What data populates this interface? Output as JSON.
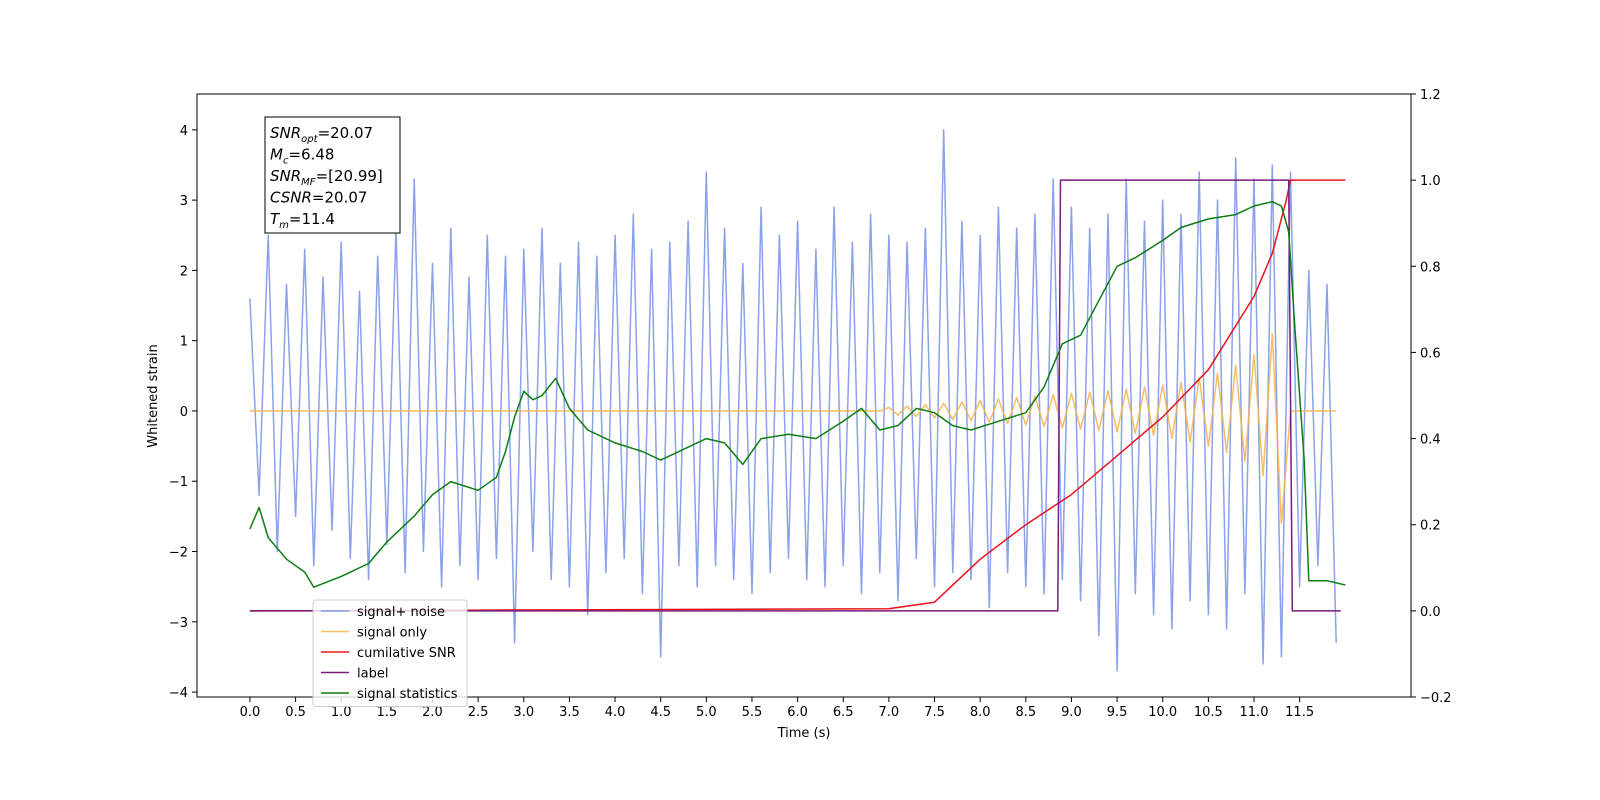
{
  "chart_data": {
    "type": "line",
    "xlabel": "Time (s)",
    "ylabel": "Whitened strain",
    "xlim": [
      -0.58,
      12.72
    ],
    "ylim": [
      -4.07,
      4.51
    ],
    "y2lim": [
      -0.2,
      1.2
    ],
    "xticks": [
      {
        "value": 0,
        "label": "0.0"
      },
      0.5,
      {
        "value": 1,
        "label": "1.0"
      },
      1.5,
      {
        "value": 2,
        "label": "2.0"
      },
      2.5,
      {
        "value": 3,
        "label": "3.0"
      },
      3.5,
      {
        "value": 4,
        "label": "4.0"
      },
      4.5,
      {
        "value": 5,
        "label": "5.0"
      },
      5.5,
      {
        "value": 6,
        "label": "6.0"
      },
      6.5,
      {
        "value": 7,
        "label": "7.0"
      },
      7.5,
      {
        "value": 8,
        "label": "8.0"
      },
      8.5,
      {
        "value": 9,
        "label": "9.0"
      },
      9.5,
      {
        "value": 10,
        "label": "10.0"
      },
      10.5,
      {
        "value": 11,
        "label": "11.0"
      },
      11.5
    ],
    "yticks": [
      {
        "value": -4,
        "label": "−4"
      },
      {
        "value": -3,
        "label": "−3"
      },
      {
        "value": -2,
        "label": "−2"
      },
      {
        "value": -1,
        "label": "−1"
      },
      0,
      1,
      2,
      3,
      4
    ],
    "y2ticks": [
      {
        "value": -0.2,
        "label": "−0.2"
      },
      {
        "value": 0,
        "label": "0.0"
      },
      0.2,
      0.4,
      0.6,
      0.8,
      {
        "value": 1,
        "label": "1.0"
      },
      1.2
    ],
    "legend": "lower left",
    "annotation": [
      {
        "base": "SNR",
        "sub": "opt",
        "rest": "=20.07"
      },
      {
        "base": "M",
        "sub": "c",
        "rest": "=6.48"
      },
      {
        "base": "SNR",
        "sub": "MF",
        "rest": "=[20.99]"
      },
      {
        "base": "CSNR",
        "sub": null,
        "rest": "=20.07"
      },
      {
        "base": "T",
        "sub": "m",
        "rest": "=11.4"
      }
    ],
    "x": [
      0,
      0.1,
      0.2,
      0.3,
      0.4,
      0.5,
      0.6,
      0.7,
      0.8,
      0.9,
      1,
      1.1,
      1.2,
      1.3,
      1.4,
      1.5,
      1.6,
      1.7,
      1.8,
      1.9,
      2,
      2.1,
      2.2,
      2.3,
      2.4,
      2.5,
      2.6,
      2.7,
      2.8,
      2.9,
      3,
      3.1,
      3.2,
      3.3,
      3.4,
      3.5,
      3.6,
      3.7,
      3.8,
      3.9,
      4,
      4.1,
      4.2,
      4.3,
      4.4,
      4.5,
      4.6,
      4.7,
      4.8,
      4.9,
      5,
      5.1,
      5.2,
      5.3,
      5.4,
      5.5,
      5.6,
      5.7,
      5.8,
      5.9,
      6,
      6.1,
      6.2,
      6.3,
      6.4,
      6.5,
      6.6,
      6.7,
      6.8,
      6.9,
      7,
      7.1,
      7.2,
      7.3,
      7.4,
      7.5,
      7.6,
      7.7,
      7.8,
      7.9,
      8,
      8.1,
      8.2,
      8.3,
      8.4,
      8.5,
      8.6,
      8.7,
      8.8,
      8.9,
      9,
      9.1,
      9.2,
      9.3,
      9.4,
      9.5,
      9.6,
      9.7,
      9.8,
      9.9,
      10,
      10.1,
      10.2,
      10.3,
      10.4,
      10.5,
      10.6,
      10.7,
      10.8,
      10.9,
      11,
      11.1,
      11.2,
      11.3,
      11.4,
      11.5,
      11.6,
      11.7,
      11.8,
      11.9
    ],
    "series": [
      {
        "name": "signal+ noise",
        "color": "#7591e7",
        "values": [
          1.6,
          -1.2,
          2.5,
          -2.0,
          1.8,
          -1.5,
          2.3,
          -2.2,
          1.9,
          -1.7,
          2.4,
          -2.1,
          1.7,
          -2.4,
          2.2,
          -1.9,
          2.6,
          -2.3,
          3.3,
          -2.0,
          2.1,
          -2.5,
          2.6,
          -2.2,
          1.9,
          -2.4,
          2.5,
          -2.1,
          2.2,
          -3.3,
          2.3,
          -2.0,
          2.6,
          -2.4,
          2.1,
          -2.5,
          2.4,
          -2.9,
          2.2,
          -2.3,
          2.5,
          -2.1,
          2.8,
          -2.6,
          2.3,
          -3.5,
          2.4,
          -2.2,
          2.7,
          -2.5,
          3.4,
          -2.2,
          2.6,
          -2.4,
          2.1,
          -2.6,
          2.9,
          -2.3,
          2.5,
          -2.1,
          2.7,
          -2.4,
          2.3,
          -2.5,
          2.9,
          -2.2,
          2.4,
          -2.6,
          2.8,
          -2.3,
          2.5,
          -2.7,
          2.4,
          -2.1,
          2.6,
          -2.5,
          4.0,
          -2.3,
          2.7,
          -2.4,
          2.5,
          -2.8,
          2.9,
          -2.3,
          2.6,
          -2.5,
          2.8,
          -2.6,
          3.3,
          -2.4,
          2.9,
          -2.7,
          2.6,
          -3.2,
          2.8,
          -3.7,
          3.3,
          -2.6,
          2.7,
          -2.9,
          3.0,
          -3.1,
          2.8,
          -2.7,
          3.4,
          -2.9,
          3.0,
          -3.1,
          3.6,
          -2.6,
          3.3,
          -3.6,
          3.5,
          -3.5,
          3.4,
          -2.5,
          2.0,
          -2.2,
          1.8,
          -3.3
        ]
      },
      {
        "name": "signal only",
        "color": "#f5b24a",
        "values": [
          0,
          0,
          0,
          0,
          0,
          0,
          0,
          0,
          0,
          0,
          0,
          0,
          0,
          0,
          0,
          0,
          0,
          0,
          0,
          0,
          0,
          0,
          0,
          0,
          0,
          0,
          0,
          0,
          0,
          0,
          0,
          0,
          0,
          0,
          0,
          0,
          0,
          0,
          0,
          0,
          0,
          0,
          0,
          0,
          0,
          0,
          0,
          0,
          0,
          0,
          0,
          0,
          0,
          0,
          0,
          0,
          0,
          0,
          0,
          0,
          0,
          0,
          0,
          0,
          0,
          0,
          0,
          0,
          0,
          0,
          0.05,
          -0.06,
          0.07,
          -0.08,
          0.09,
          -0.1,
          0.11,
          -0.12,
          0.13,
          -0.14,
          0.15,
          -0.16,
          0.17,
          -0.18,
          0.19,
          -0.2,
          0.21,
          -0.22,
          0.23,
          -0.24,
          0.25,
          -0.26,
          0.27,
          -0.28,
          0.29,
          -0.3,
          0.31,
          -0.32,
          0.34,
          -0.35,
          0.37,
          -0.39,
          0.41,
          -0.44,
          0.47,
          -0.5,
          0.54,
          -0.59,
          0.65,
          -0.72,
          0.8,
          -0.92,
          1.1,
          -1.6,
          0,
          0,
          0,
          0,
          0,
          0
        ]
      },
      {
        "name": "cumilative SNR",
        "color": "#e8141c",
        "axis": "y2",
        "x": [
          0,
          7,
          7.5,
          8,
          8.5,
          9,
          9.5,
          10,
          10.5,
          11,
          11.2,
          11.35,
          11.4,
          12
        ],
        "values": [
          0,
          0.005,
          0.02,
          0.12,
          0.2,
          0.27,
          0.36,
          0.45,
          0.56,
          0.73,
          0.83,
          0.95,
          1.0,
          1.0
        ]
      },
      {
        "name": "label",
        "color": "#7b1a7b",
        "axis": "y2",
        "x": [
          0,
          8.85,
          8.88,
          11.38,
          11.42,
          11.95
        ],
        "values": [
          0,
          0,
          1,
          1,
          0,
          0
        ]
      },
      {
        "name": "signal statistics",
        "color": "#0e7d12",
        "axis": "y2",
        "x": [
          0,
          0.1,
          0.2,
          0.4,
          0.6,
          0.7,
          1,
          1.3,
          1.5,
          1.8,
          2,
          2.2,
          2.5,
          2.7,
          2.8,
          2.9,
          3,
          3.1,
          3.2,
          3.35,
          3.5,
          3.7,
          4,
          4.3,
          4.5,
          4.8,
          5,
          5.2,
          5.4,
          5.6,
          5.9,
          6.2,
          6.5,
          6.7,
          6.9,
          7.1,
          7.3,
          7.5,
          7.7,
          7.9,
          8.2,
          8.5,
          8.7,
          8.9,
          9.1,
          9.3,
          9.5,
          9.7,
          10,
          10.2,
          10.5,
          10.8,
          11,
          11.2,
          11.3,
          11.38,
          11.45,
          11.55,
          11.6,
          11.8,
          12
        ],
        "values": [
          0.19,
          0.24,
          0.17,
          0.12,
          0.09,
          0.055,
          0.08,
          0.11,
          0.16,
          0.22,
          0.27,
          0.3,
          0.28,
          0.31,
          0.37,
          0.45,
          0.51,
          0.49,
          0.5,
          0.54,
          0.47,
          0.42,
          0.39,
          0.37,
          0.35,
          0.38,
          0.4,
          0.39,
          0.34,
          0.4,
          0.41,
          0.4,
          0.44,
          0.47,
          0.42,
          0.43,
          0.47,
          0.46,
          0.43,
          0.42,
          0.44,
          0.46,
          0.52,
          0.62,
          0.64,
          0.72,
          0.8,
          0.82,
          0.86,
          0.89,
          0.91,
          0.92,
          0.94,
          0.95,
          0.94,
          0.88,
          0.65,
          0.35,
          0.07,
          0.07,
          0.06
        ]
      }
    ]
  }
}
